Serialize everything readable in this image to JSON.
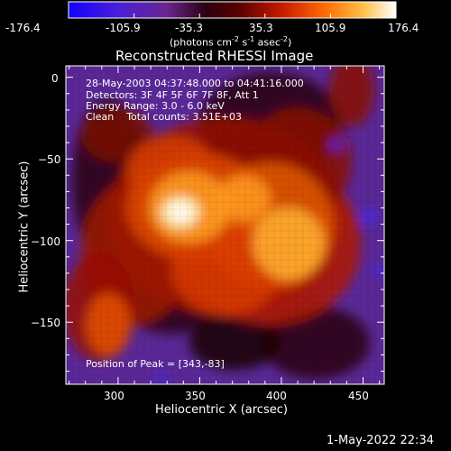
{
  "colorbar": {
    "ticks": [
      "-176.4",
      "-105.9",
      "-35.3",
      "35.3",
      "105.9",
      "176.4"
    ],
    "units_text": "(photons cm",
    "units_exp1": "-2",
    "units_mid1": " s",
    "units_exp2": "-1",
    "units_mid2": " asec",
    "units_exp3": "-2",
    "units_close": ")",
    "colors": [
      "#1a00ff",
      "#5a23a8",
      "#3a000a",
      "#c32000",
      "#ff8a1a",
      "#ffffff"
    ]
  },
  "plot": {
    "title": "Reconstructed RHESSI Image",
    "xlabel": "Heliocentric X (arcsec)",
    "ylabel": "Heliocentric Y (arcsec)",
    "xticks": [
      "300",
      "350",
      "400",
      "450"
    ],
    "yticks": [
      "0",
      "−50",
      "−100",
      "−150"
    ],
    "xrange": [
      268,
      463
    ],
    "yrange": [
      -188,
      7
    ],
    "peak": [
      343,
      -83
    ]
  },
  "annotations": {
    "time": "28-May-2003 04:37:48.000 to 04:41:16.000",
    "detectors": "Detectors: 3F 4F 5F 6F 7F 8F, Att 1",
    "energy": "Energy Range: 3.0 - 6.0 keV",
    "clean": "Clean    Total counts: 3.51E+03",
    "peak": "Position of Peak = [343,-83]"
  },
  "footer": {
    "timestamp": "1-May-2022 22:34"
  }
}
